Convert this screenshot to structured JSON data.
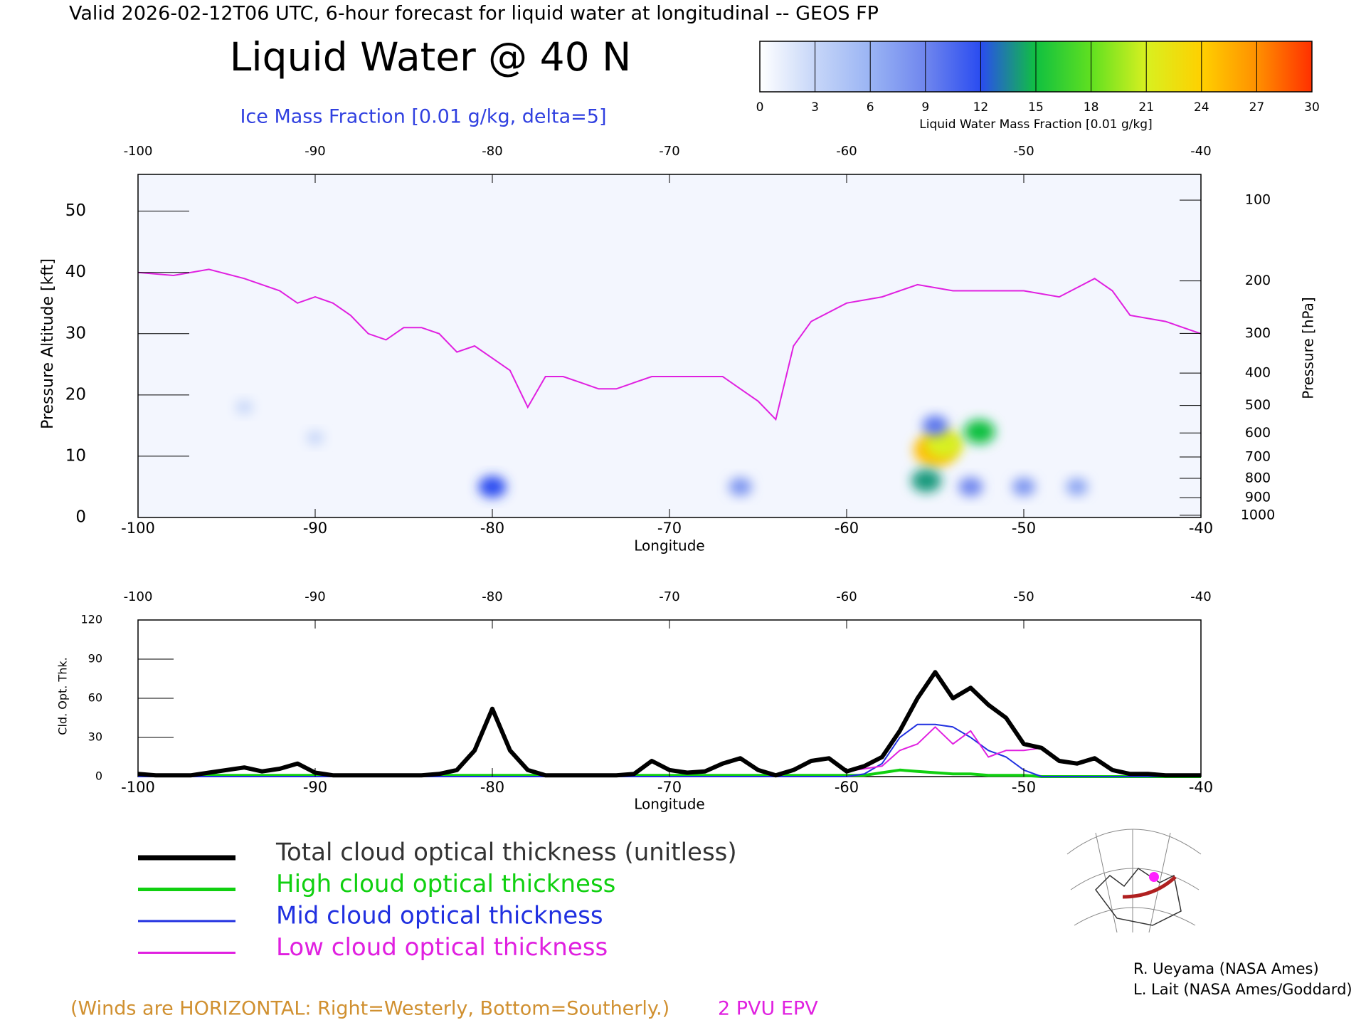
{
  "header": "Valid 2026-02-12T06 UTC, 6-hour forecast for liquid water at longitudinal -- GEOS FP",
  "footnote": "(Winds are HORIZONTAL: Right=Westerly, Bottom=Southerly.)",
  "credits": [
    "R. Ueyama (NASA Ames)",
    "L. Lait (NASA Ames/Goddard)"
  ],
  "chart_data": [
    {
      "type": "heatmap",
      "title": "Liquid Water @ 40 N",
      "subtitle": "Ice Mass Fraction [0.01 g/kg, delta=5]",
      "xlabel": "Longitude",
      "ylabel": "Pressure Altitude [kft]",
      "y2label": "Pressure [hPa]",
      "y2scale": "standard-atmosphere",
      "xlim": [
        -100,
        -40
      ],
      "xticks": [
        -100,
        -90,
        -80,
        -70,
        -60,
        -50,
        -40
      ],
      "ylim": [
        0,
        56
      ],
      "yticks": [
        0,
        10,
        20,
        30,
        40,
        50
      ],
      "y2ticks": [
        100,
        200,
        300,
        400,
        500,
        600,
        700,
        800,
        900,
        1000
      ],
      "colorbar": {
        "label": "Liquid Water Mass Fraction [0.01 g/kg]",
        "ticks": [
          0,
          3,
          6,
          9,
          12,
          15,
          18,
          21,
          24,
          27,
          30
        ],
        "colors": [
          "#ffffff",
          "#c6d6f8",
          "#9ab4f4",
          "#6f86ee",
          "#2a4cf0",
          "#10c040",
          "#60e020",
          "#d8f020",
          "#ffd000",
          "#ff9000",
          "#ff3000"
        ]
      },
      "cells": {
        "x": [
          -55,
          -54.5,
          -52.5,
          -55.5,
          -53,
          -80,
          -66,
          -50,
          -47,
          -55,
          -94,
          -90
        ],
        "y": [
          11,
          12,
          14,
          6,
          5,
          5,
          5,
          5,
          5,
          15,
          18,
          13
        ],
        "values": [
          25,
          21,
          15,
          14,
          9,
          12,
          8,
          8,
          7,
          10,
          3,
          3
        ]
      },
      "series": [
        {
          "name": "2 PVU EPV",
          "color": "#e020e0",
          "x": [
            -100,
            -98,
            -96,
            -94,
            -92,
            -91,
            -90,
            -89,
            -88,
            -87,
            -86,
            -85,
            -84,
            -83,
            -82,
            -81,
            -80,
            -79,
            -78,
            -77,
            -76,
            -75,
            -74,
            -73,
            -72,
            -71,
            -70,
            -69,
            -68,
            -67,
            -66,
            -65,
            -64,
            -63,
            -62,
            -60,
            -58,
            -56,
            -54,
            -52,
            -50,
            -48,
            -46,
            -45,
            -44,
            -42,
            -40
          ],
          "values": [
            40,
            39.5,
            40.5,
            39,
            37,
            35,
            36,
            35,
            33,
            30,
            29,
            31,
            31,
            30,
            27,
            28,
            26,
            24,
            18,
            23,
            23,
            22,
            21,
            21,
            22,
            23,
            23,
            23,
            23,
            23,
            21,
            19,
            16,
            28,
            32,
            35,
            36,
            38,
            37,
            37,
            37,
            36,
            39,
            37,
            33,
            32,
            30
          ]
        }
      ]
    },
    {
      "type": "line",
      "ylabel": "Cld. Opt. Thk.",
      "xlabel": "Longitude",
      "xlim": [
        -100,
        -40
      ],
      "xticks": [
        -100,
        -90,
        -80,
        -70,
        -60,
        -50,
        -40
      ],
      "ylim": [
        0,
        120
      ],
      "yticks": [
        0,
        30,
        60,
        90,
        120
      ],
      "x": [
        -100,
        -99,
        -98,
        -97,
        -96,
        -95,
        -94,
        -93,
        -92,
        -91,
        -90,
        -89,
        -88,
        -87,
        -86,
        -85,
        -84,
        -83,
        -82,
        -81,
        -80,
        -79,
        -78,
        -77,
        -76,
        -75,
        -74,
        -73,
        -72,
        -71,
        -70,
        -69,
        -68,
        -67,
        -66,
        -65,
        -64,
        -63,
        -62,
        -61,
        -60,
        -59,
        -58,
        -57,
        -56,
        -55,
        -54,
        -53,
        -52,
        -51,
        -50,
        -49,
        -48,
        -47,
        -46,
        -45,
        -44,
        -43,
        -42,
        -41,
        -40
      ],
      "series": [
        {
          "name": "Total cloud optical thickness (unitless)",
          "color": "#000000",
          "line_width": 6,
          "values": [
            2,
            1,
            1,
            1,
            3,
            5,
            7,
            4,
            6,
            10,
            3,
            1,
            1,
            1,
            1,
            1,
            1,
            2,
            5,
            20,
            52,
            20,
            5,
            1,
            1,
            1,
            1,
            1,
            2,
            12,
            5,
            3,
            4,
            10,
            14,
            5,
            1,
            5,
            12,
            14,
            4,
            8,
            15,
            35,
            60,
            80,
            60,
            68,
            55,
            45,
            25,
            22,
            12,
            10,
            14,
            5,
            2,
            2,
            1,
            1,
            1
          ]
        },
        {
          "name": "High cloud optical thickness",
          "color": "#10d010",
          "line_width": 4,
          "values": [
            1,
            1,
            1,
            1,
            1,
            1,
            1,
            1,
            1,
            1,
            1,
            1,
            1,
            1,
            1,
            1,
            1,
            1,
            1,
            1,
            1,
            1,
            1,
            1,
            1,
            1,
            1,
            1,
            1,
            1,
            1,
            1,
            1,
            1,
            1,
            1,
            1,
            1,
            1,
            1,
            1,
            1,
            3,
            5,
            4,
            3,
            2,
            2,
            1,
            1,
            1,
            0,
            0,
            0,
            0,
            0,
            0,
            0,
            0,
            0,
            0
          ]
        },
        {
          "name": "Mid cloud optical thickness",
          "color": "#2030e0",
          "line_width": 2,
          "values": [
            0,
            0,
            0,
            0,
            0,
            0,
            0,
            0,
            0,
            0,
            0,
            0,
            0,
            0,
            0,
            0,
            0,
            0,
            0,
            0,
            0,
            0,
            0,
            0,
            0,
            0,
            0,
            0,
            0,
            0,
            0,
            0,
            0,
            0,
            0,
            0,
            0,
            0,
            0,
            0,
            0,
            2,
            10,
            30,
            40,
            40,
            38,
            30,
            20,
            15,
            5,
            0,
            0,
            0,
            0,
            0,
            0,
            0,
            0,
            0,
            0
          ]
        },
        {
          "name": "Low cloud optical thickness",
          "color": "#e020e0",
          "line_width": 2,
          "values": [
            2,
            1,
            1,
            1,
            3,
            5,
            7,
            4,
            6,
            10,
            3,
            1,
            1,
            1,
            1,
            1,
            1,
            2,
            5,
            20,
            52,
            20,
            5,
            1,
            1,
            1,
            1,
            1,
            2,
            12,
            5,
            3,
            4,
            10,
            14,
            5,
            1,
            5,
            12,
            14,
            4,
            6,
            8,
            20,
            25,
            38,
            25,
            35,
            15,
            20,
            20,
            22,
            12,
            10,
            14,
            5,
            2,
            2,
            1,
            1,
            1
          ]
        }
      ]
    }
  ]
}
